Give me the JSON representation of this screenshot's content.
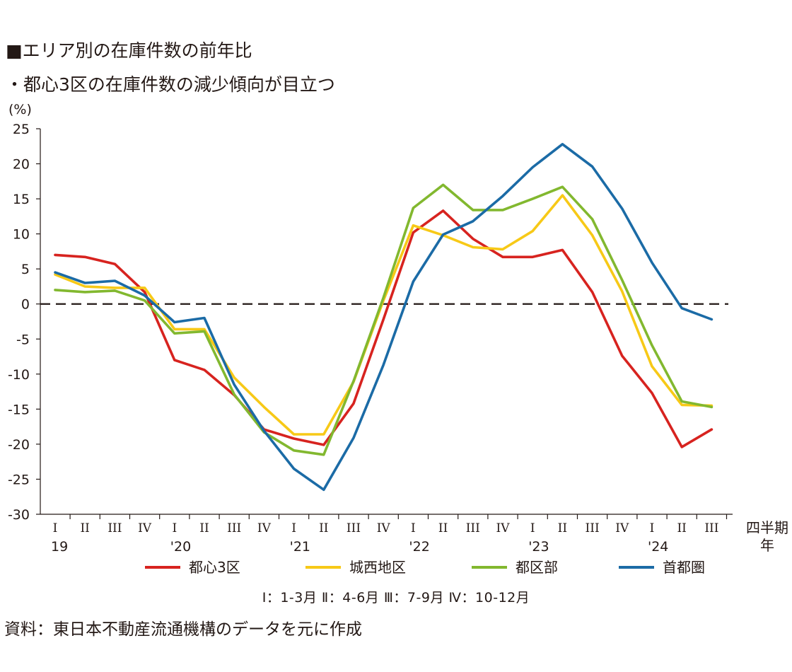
{
  "heading": {
    "title": "■エリア別の在庫件数の前年比",
    "subtitle": "・都心3区の在庫件数の減少傾向が目立つ"
  },
  "chart_data": {
    "type": "line",
    "ylabel": "(%)",
    "ylim": [
      -30,
      25
    ],
    "yticks": [
      "25",
      "20",
      "15",
      "10",
      "5",
      "0",
      "-5",
      "-10",
      "-15",
      "-20",
      "-25",
      "-30"
    ],
    "reference_line": {
      "y": 0,
      "style": "dashed"
    },
    "quarter_labels": [
      "I",
      "II",
      "III",
      "IV",
      "I",
      "II",
      "III",
      "IV",
      "I",
      "II",
      "III",
      "IV",
      "I",
      "II",
      "III",
      "IV",
      "I",
      "II",
      "III",
      "IV",
      "I",
      "II",
      "III"
    ],
    "year_labels": [
      {
        "label": "19",
        "quarter_index": 0
      },
      {
        "label": "'20",
        "quarter_index": 4
      },
      {
        "label": "'21",
        "quarter_index": 8
      },
      {
        "label": "'22",
        "quarter_index": 12
      },
      {
        "label": "'23",
        "quarter_index": 16
      },
      {
        "label": "'24",
        "quarter_index": 20
      }
    ],
    "x_unit": [
      "四半期",
      "年"
    ],
    "series": [
      {
        "name": "都心3区",
        "color": "#d7231f",
        "values": [
          7.0,
          6.7,
          5.7,
          1.7,
          -8.0,
          -9.4,
          -13.0,
          -17.9,
          -19.2,
          -20.1,
          -14.2,
          -2.2,
          10.2,
          13.3,
          9.3,
          6.7,
          6.7,
          7.7,
          1.7,
          -7.4,
          -12.7,
          -20.4,
          -17.9
        ]
      },
      {
        "name": "城西地区",
        "color": "#f7c917",
        "values": [
          4.2,
          2.5,
          2.3,
          2.3,
          -3.6,
          -3.6,
          -10.5,
          -14.7,
          -18.6,
          -18.6,
          -11.1,
          0.5,
          11.2,
          9.8,
          8.1,
          7.8,
          10.4,
          15.5,
          9.8,
          1.8,
          -8.9,
          -14.4,
          -14.5
        ]
      },
      {
        "name": "都区部",
        "color": "#82b82f",
        "values": [
          2.0,
          1.7,
          1.9,
          0.5,
          -4.2,
          -3.9,
          -12.9,
          -18.3,
          -20.9,
          -21.5,
          -11.0,
          0.9,
          13.7,
          17.0,
          13.4,
          13.4,
          15.0,
          16.7,
          12.1,
          3.4,
          -5.9,
          -13.9,
          -14.7
        ]
      },
      {
        "name": "首都圏",
        "color": "#1b6ba6",
        "values": [
          4.5,
          3.0,
          3.3,
          1.2,
          -2.6,
          -2.0,
          -11.5,
          -18.1,
          -23.5,
          -26.5,
          -19.1,
          -8.7,
          3.2,
          9.9,
          11.8,
          15.4,
          19.5,
          22.8,
          19.6,
          13.6,
          5.9,
          -0.6,
          -2.2
        ]
      }
    ]
  },
  "note": "Ⅰ：1-3月 Ⅱ：4-6月 Ⅲ：7-9月 Ⅳ：10-12月",
  "source": "資料：東日本不動産流通機構のデータを元に作成"
}
